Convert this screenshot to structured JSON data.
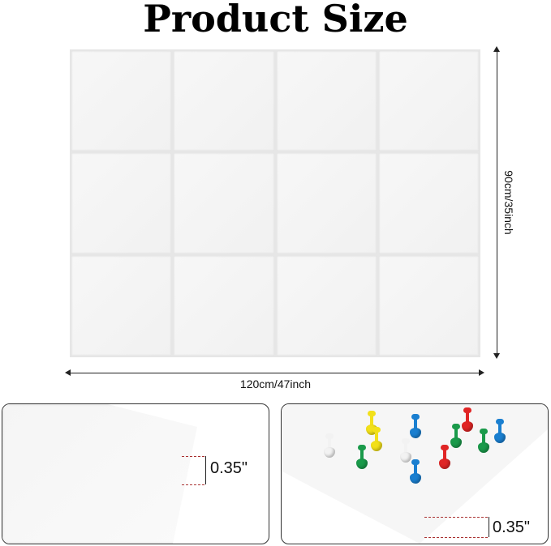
{
  "title": "Product Size",
  "width_label": "120cm/47inch",
  "height_label": "90cm/35inch",
  "tiles": {
    "rows": 3,
    "columns": 4
  },
  "thickness_left": "0.35\"",
  "thickness_right": "0.35\"",
  "pin_colors": {
    "yellow": "#f2e01a",
    "blue": "#1a7fd0",
    "red": "#e02525",
    "green": "#1a9a4a",
    "white": "#f2f2f2"
  }
}
